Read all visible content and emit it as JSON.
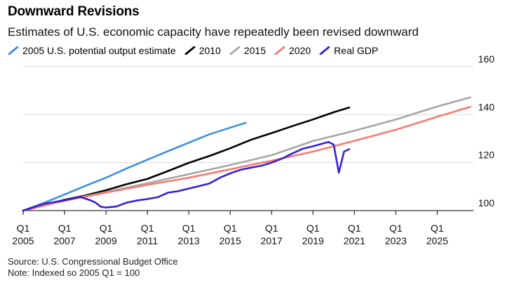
{
  "header": {
    "title": "Downward Revisions",
    "subtitle": "Estimates of U.S. economic capacity have repeatedly been revised downward"
  },
  "footer": {
    "source": "Source: U.S. Congressional Budget Office",
    "note": "Note: Indexed so 2005 Q1 = 100"
  },
  "chart_data": {
    "type": "line",
    "title": "Downward Revisions",
    "subtitle": "Estimates of U.S. economic capacity have repeatedly been revised downward",
    "xlabel": "",
    "ylabel": "",
    "xlim": [
      2005,
      2026.75
    ],
    "ylim": [
      100,
      160
    ],
    "y_ticks": [
      100,
      120,
      140,
      160
    ],
    "y_axis_side": "right",
    "x_ticks": [
      {
        "year": 2005,
        "q": "Q1",
        "label": "2005"
      },
      {
        "year": 2007,
        "q": "Q1",
        "label": "2007"
      },
      {
        "year": 2009,
        "q": "Q1",
        "label": "2009"
      },
      {
        "year": 2011,
        "q": "Q1",
        "label": "2011"
      },
      {
        "year": 2013,
        "q": "Q1",
        "label": "2013"
      },
      {
        "year": 2015,
        "q": "Q1",
        "label": "2015"
      },
      {
        "year": 2017,
        "q": "Q1",
        "label": "2017"
      },
      {
        "year": 2019,
        "q": "Q1",
        "label": "2019"
      },
      {
        "year": 2021,
        "q": "Q1",
        "label": "2021"
      },
      {
        "year": 2023,
        "q": "Q1",
        "label": "2023"
      },
      {
        "year": 2025,
        "q": "Q1",
        "label": "2025"
      }
    ],
    "grid": "horizontal",
    "legend_position": "top-left",
    "series": [
      {
        "name": "2005 U.S. potential output estimate",
        "color": "#3d8fe0",
        "points": [
          [
            2005,
            100
          ],
          [
            2006,
            103.2
          ],
          [
            2007,
            106.7
          ],
          [
            2008,
            110.3
          ],
          [
            2009,
            113.7
          ],
          [
            2010,
            117.6
          ],
          [
            2011,
            121.2
          ],
          [
            2012,
            124.8
          ],
          [
            2013,
            128.3
          ],
          [
            2014,
            131.8
          ],
          [
            2015,
            134.6
          ],
          [
            2015.75,
            136.6
          ]
        ]
      },
      {
        "name": "2010",
        "color": "#000000",
        "points": [
          [
            2005,
            100
          ],
          [
            2006,
            102.3
          ],
          [
            2007,
            104.5
          ],
          [
            2008,
            106.3
          ],
          [
            2009,
            108.5
          ],
          [
            2010,
            111
          ],
          [
            2011,
            113.2
          ],
          [
            2012,
            116.5
          ],
          [
            2013,
            119.9
          ],
          [
            2014,
            122.8
          ],
          [
            2015,
            126
          ],
          [
            2016,
            129.5
          ],
          [
            2017,
            132.3
          ],
          [
            2018,
            135.2
          ],
          [
            2019,
            138
          ],
          [
            2020,
            141
          ],
          [
            2020.75,
            143
          ]
        ]
      },
      {
        "name": "2015",
        "color": "#a6a6a6",
        "points": [
          [
            2005,
            100
          ],
          [
            2007,
            104.2
          ],
          [
            2009,
            107.7
          ],
          [
            2011,
            111.4
          ],
          [
            2013,
            115.2
          ],
          [
            2015,
            119
          ],
          [
            2017,
            123.1
          ],
          [
            2019,
            129
          ],
          [
            2021,
            133.3
          ],
          [
            2023,
            138
          ],
          [
            2025,
            143.4
          ],
          [
            2026.6,
            147.2
          ]
        ]
      },
      {
        "name": "2020",
        "color": "#f47c72",
        "points": [
          [
            2005,
            100
          ],
          [
            2007,
            104.1
          ],
          [
            2009,
            107.5
          ],
          [
            2011,
            110.7
          ],
          [
            2013,
            113.7
          ],
          [
            2015,
            117.2
          ],
          [
            2017,
            120.8
          ],
          [
            2019,
            124.6
          ],
          [
            2021,
            129.1
          ],
          [
            2023,
            133.7
          ],
          [
            2025,
            139.1
          ],
          [
            2026.6,
            143.3
          ]
        ]
      },
      {
        "name": "Real GDP",
        "color": "#3a1ed8",
        "points": [
          [
            2005,
            100
          ],
          [
            2006,
            102.8
          ],
          [
            2007,
            104.3
          ],
          [
            2007.75,
            105.7
          ],
          [
            2008.25,
            104.3
          ],
          [
            2008.5,
            103.3
          ],
          [
            2008.75,
            101.6
          ],
          [
            2009,
            101.3
          ],
          [
            2009.5,
            101.7
          ],
          [
            2010,
            103.3
          ],
          [
            2010.5,
            104.2
          ],
          [
            2011,
            104.8
          ],
          [
            2011.5,
            105.6
          ],
          [
            2012,
            107.5
          ],
          [
            2012.5,
            108.1
          ],
          [
            2013,
            109.2
          ],
          [
            2013.5,
            110.2
          ],
          [
            2014,
            111.3
          ],
          [
            2014.5,
            113.7
          ],
          [
            2015,
            115.5
          ],
          [
            2015.5,
            117
          ],
          [
            2016,
            117.9
          ],
          [
            2016.5,
            118.7
          ],
          [
            2017,
            120
          ],
          [
            2017.5,
            121.7
          ],
          [
            2018,
            123.8
          ],
          [
            2018.5,
            125.8
          ],
          [
            2019,
            126.8
          ],
          [
            2019.5,
            128
          ],
          [
            2019.75,
            128.6
          ],
          [
            2020,
            127.5
          ],
          [
            2020.25,
            115.8
          ],
          [
            2020.5,
            124.6
          ],
          [
            2020.75,
            125.6
          ]
        ]
      }
    ]
  }
}
